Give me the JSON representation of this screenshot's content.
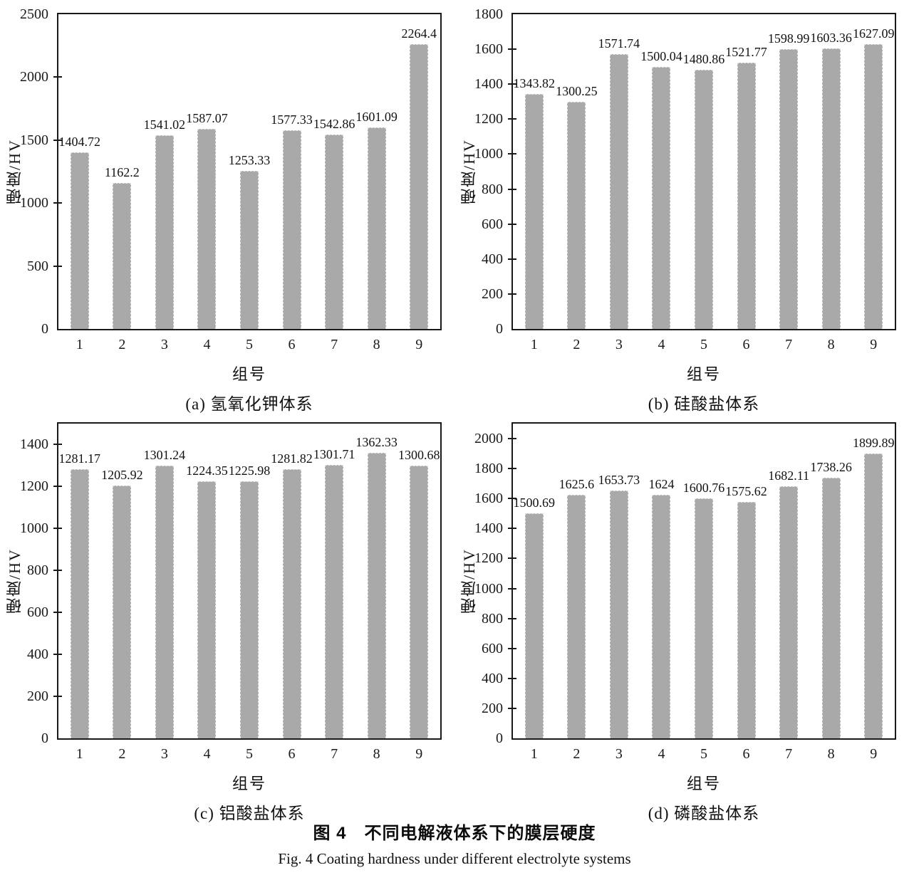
{
  "colors": {
    "bar_fill": "#a9a9a9",
    "axis": "#1a1a1a",
    "text": "#111111",
    "background": "#ffffff"
  },
  "figure": {
    "caption_zh": "图 4　不同电解液体系下的膜层硬度",
    "caption_en": "Fig. 4   Coating hardness under different electrolyte systems"
  },
  "chart_data": [
    {
      "type": "bar",
      "panel": "a",
      "subtitle": "(a) 氢氧化钾体系",
      "xlabel": "组号",
      "ylabel": "硬度/HV",
      "categories": [
        "1",
        "2",
        "3",
        "4",
        "5",
        "6",
        "7",
        "8",
        "9"
      ],
      "values": [
        1404.72,
        1162.2,
        1541.02,
        1587.07,
        1253.33,
        1577.33,
        1542.86,
        1601.09,
        2264.4
      ],
      "ylim": [
        0,
        2500
      ],
      "yticks": [
        0,
        500,
        1000,
        1500,
        2000,
        2500
      ],
      "grid": false,
      "legend": "none"
    },
    {
      "type": "bar",
      "panel": "b",
      "subtitle": "(b) 硅酸盐体系",
      "xlabel": "组号",
      "ylabel": "硬度/HV",
      "categories": [
        "1",
        "2",
        "3",
        "4",
        "5",
        "6",
        "7",
        "8",
        "9"
      ],
      "values": [
        1343.82,
        1300.25,
        1571.74,
        1500.04,
        1480.86,
        1521.77,
        1598.99,
        1603.36,
        1627.09
      ],
      "ylim": [
        0,
        1800
      ],
      "yticks": [
        0,
        200,
        400,
        600,
        800,
        1000,
        1200,
        1400,
        1600,
        1800
      ],
      "grid": false,
      "legend": "none"
    },
    {
      "type": "bar",
      "panel": "c",
      "subtitle": "(c) 铝酸盐体系",
      "xlabel": "组号",
      "ylabel": "硬度/HV",
      "categories": [
        "1",
        "2",
        "3",
        "4",
        "5",
        "6",
        "7",
        "8",
        "9"
      ],
      "values": [
        1281.17,
        1205.92,
        1301.24,
        1224.35,
        1225.98,
        1281.82,
        1301.71,
        1362.33,
        1300.68
      ],
      "ylim": [
        0,
        1500
      ],
      "yticks": [
        0,
        200,
        400,
        600,
        800,
        1000,
        1200,
        1400
      ],
      "grid": false,
      "legend": "none"
    },
    {
      "type": "bar",
      "panel": "d",
      "subtitle": "(d) 磷酸盐体系",
      "xlabel": "组号",
      "ylabel": "硬度/HV",
      "categories": [
        "1",
        "2",
        "3",
        "4",
        "5",
        "6",
        "7",
        "8",
        "9"
      ],
      "values": [
        1500.69,
        1625.6,
        1653.73,
        1624,
        1600.76,
        1575.62,
        1682.11,
        1738.26,
        1899.89
      ],
      "ylim": [
        0,
        2100
      ],
      "yticks": [
        0,
        200,
        400,
        600,
        800,
        1000,
        1200,
        1400,
        1600,
        1800,
        2000
      ],
      "grid": false,
      "legend": "none"
    }
  ]
}
